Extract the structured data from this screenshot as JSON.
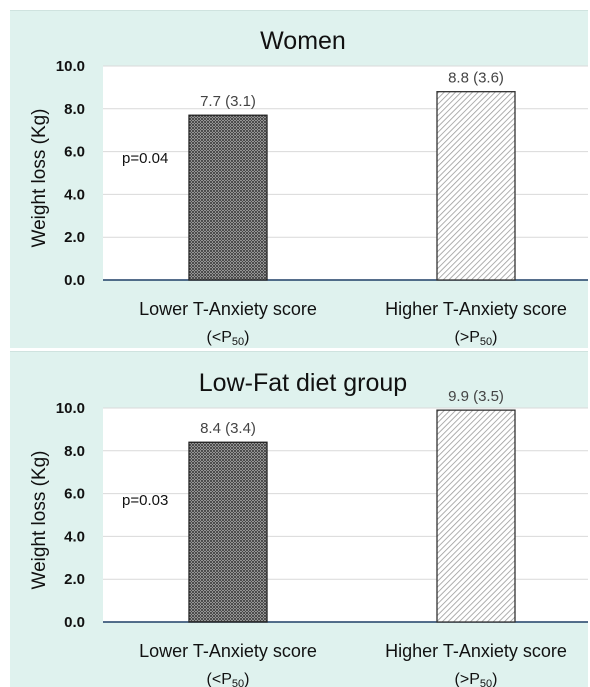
{
  "chart_data": [
    {
      "type": "bar",
      "title": "Women",
      "ylabel": "Weight loss (Kg)",
      "xlabel": "",
      "ylim": [
        0,
        10
      ],
      "yticks": [
        "0.0",
        "2.0",
        "4.0",
        "6.0",
        "8.0",
        "10.0"
      ],
      "categories": [
        {
          "line1": "Lower T-Anxiety score",
          "line2_prefix": "(<P",
          "line2_sub": "50",
          "line2_suffix": ")"
        },
        {
          "line1": "Higher T-Anxiety score",
          "line2_prefix": "(>P",
          "line2_sub": "50",
          "line2_suffix": ")"
        }
      ],
      "values": [
        7.7,
        8.8
      ],
      "sd": [
        3.1,
        3.6
      ],
      "data_labels": [
        "7.7 (3.1)",
        "8.8 (3.6)"
      ],
      "annotation": "p=0.04",
      "grid": true,
      "patterns": [
        "dense-crosshatch",
        "diagonal-hatch"
      ],
      "colors": {
        "bar_dark": "#444444",
        "bar_light": "#9a9a9a",
        "axis": "#1f3f66",
        "grid": "#d9d9d9",
        "panel_bg": "#dff2ee",
        "plot_bg": "#ffffff"
      }
    },
    {
      "type": "bar",
      "title": "Low-Fat diet group",
      "ylabel": "Weight loss (Kg)",
      "xlabel": "",
      "ylim": [
        0,
        10
      ],
      "yticks": [
        "0.0",
        "2.0",
        "4.0",
        "6.0",
        "8.0",
        "10.0"
      ],
      "categories": [
        {
          "line1": "Lower T-Anxiety score",
          "line2_prefix": "(<P",
          "line2_sub": "50",
          "line2_suffix": ")"
        },
        {
          "line1": "Higher T-Anxiety score",
          "line2_prefix": "(>P",
          "line2_sub": "50",
          "line2_suffix": ")"
        }
      ],
      "values": [
        8.4,
        9.9
      ],
      "sd": [
        3.4,
        3.5
      ],
      "data_labels": [
        "8.4 (3.4)",
        "9.9 (3.5)"
      ],
      "annotation": "p=0.03",
      "grid": true,
      "patterns": [
        "dense-crosshatch",
        "diagonal-hatch"
      ],
      "colors": {
        "bar_dark": "#444444",
        "bar_light": "#9a9a9a",
        "axis": "#1f3f66",
        "grid": "#d9d9d9",
        "panel_bg": "#dff2ee",
        "plot_bg": "#ffffff"
      }
    }
  ]
}
